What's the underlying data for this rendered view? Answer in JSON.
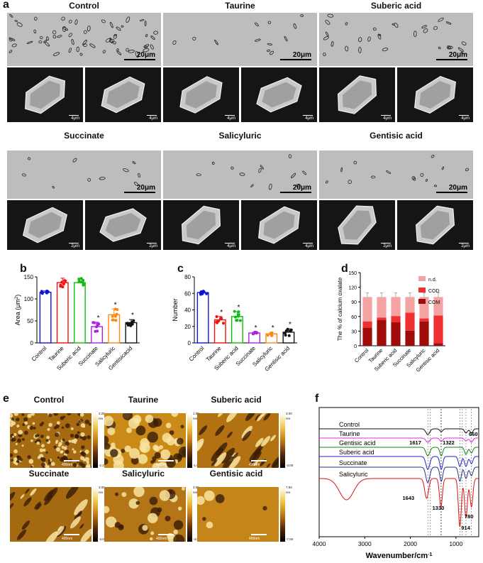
{
  "panel_a": {
    "letter": "a",
    "samples": [
      {
        "title": "Control",
        "opt_scale": "20μm",
        "sem_scales": [
          "4μm",
          "4μm"
        ]
      },
      {
        "title": "Taurine",
        "opt_scale": "20μm",
        "sem_scales": [
          "4μm",
          "4μm"
        ]
      },
      {
        "title": "Suberic acid",
        "opt_scale": "20μm",
        "sem_scales": [
          "4μm",
          "4μm"
        ]
      },
      {
        "title": "Succinate",
        "opt_scale": "20μm",
        "sem_scales": [
          "2μm",
          "2μm"
        ]
      },
      {
        "title": "Salicyluric",
        "opt_scale": "20μm",
        "sem_scales": [
          "4μm",
          "4μm"
        ]
      },
      {
        "title": "Gentisic acid",
        "opt_scale": "20μm",
        "sem_scales": [
          "2μm",
          "2μm"
        ]
      }
    ]
  },
  "panel_b": {
    "letter": "b"
  },
  "panel_c": {
    "letter": "c"
  },
  "panel_d": {
    "letter": "d"
  },
  "panel_e": {
    "letter": "e",
    "samples": [
      {
        "title": "Control",
        "scale": "400nm",
        "cbar_top": "2.25",
        "cbar_bottom": "-2.25",
        "cbar_unit": "nm"
      },
      {
        "title": "Taurine",
        "scale": "400nm",
        "cbar_top": "1.00",
        "cbar_bottom": "-1.00",
        "cbar_unit": "nm"
      },
      {
        "title": "Suberic acid",
        "scale": "400nm",
        "cbar_top": "3.00",
        "cbar_bottom": "-3.00",
        "cbar_unit": "nm"
      },
      {
        "title": "Succinate",
        "scale": "400nm",
        "cbar_top": "3.00",
        "cbar_bottom": "-3.00",
        "cbar_unit": "nm"
      },
      {
        "title": "Salicyluric",
        "scale": "400nm",
        "cbar_top": "3.00",
        "cbar_bottom": "-3.00",
        "cbar_unit": "nm"
      },
      {
        "title": "Gentisic acid",
        "scale": "400nm",
        "cbar_top": "7.50",
        "cbar_bottom": "-7.50",
        "cbar_unit": "nm"
      }
    ]
  },
  "panel_f": {
    "letter": "f"
  },
  "chart_data": [
    {
      "id": "b",
      "type": "bar",
      "ylabel": "Area (μm²)",
      "ylabel_main": "Area (μm",
      "ylabel_sup": "2",
      "ylabel_end": ")",
      "ylim": [
        0,
        150
      ],
      "yticks": [
        "0",
        "50",
        "100",
        "150"
      ],
      "categories": [
        "Control",
        "Taurine",
        "Suberic acid",
        "Succinate",
        "Salicyluric",
        "Gentisicacid"
      ],
      "values": [
        115,
        137,
        137,
        37,
        64,
        46
      ],
      "errors": [
        3,
        10,
        10,
        10,
        13,
        7
      ],
      "colors": [
        "#1111dd",
        "#ee1111",
        "#11bb11",
        "#aa22dd",
        "#ff8811",
        "#111111"
      ],
      "significance": [
        "",
        "",
        "",
        "*",
        "*",
        "*"
      ]
    },
    {
      "id": "c",
      "type": "bar",
      "ylabel": "Number",
      "ylim": [
        0,
        80
      ],
      "yticks": [
        "0",
        "20",
        "40",
        "60",
        "80"
      ],
      "categories": [
        "Control",
        "Taurine",
        "Suberic acid",
        "Succinate",
        "Salicyluric",
        "Gentisic acid"
      ],
      "values": [
        61,
        28,
        32,
        12,
        11,
        13
      ],
      "errors": [
        2,
        4,
        6,
        1,
        2,
        4
      ],
      "colors": [
        "#1111dd",
        "#ee1111",
        "#11bb11",
        "#aa22dd",
        "#ff8811",
        "#111111"
      ],
      "significance": [
        "",
        "*",
        "*",
        "*",
        "*",
        "*"
      ]
    },
    {
      "id": "d",
      "type": "bar",
      "stacked": true,
      "ylabel": "The % of calcium oxalate",
      "ylim": [
        0,
        150
      ],
      "yticks": [
        "0",
        "30",
        "60",
        "90",
        "120",
        "150"
      ],
      "categories": [
        "Control",
        "Taurine",
        "Suberic acid",
        "Succinate",
        "Salicyluric",
        "Gentisic acid"
      ],
      "series": [
        {
          "name": "COM",
          "color": "#9e0b0b",
          "values": [
            37,
            53,
            48,
            31,
            50,
            5
          ]
        },
        {
          "name": "COD",
          "color": "#f03030",
          "values": [
            13,
            5,
            13,
            37,
            6,
            57
          ]
        },
        {
          "name": "n.d.",
          "color": "#f4a3a3",
          "values": [
            50,
            42,
            39,
            32,
            44,
            38
          ]
        }
      ],
      "legend_position": "top-right"
    },
    {
      "id": "f",
      "type": "line",
      "xlabel_main": "Wavenumber/cm",
      "xlabel_sup": "-1",
      "xlim": [
        4000,
        500
      ],
      "xticks": [
        "4000",
        "3000",
        "2000",
        "1000"
      ],
      "series": [
        {
          "name": "Control",
          "color": "#111111"
        },
        {
          "name": "Taurine",
          "color": "#ee22ee"
        },
        {
          "name": "Gentisic acid",
          "color": "#118811"
        },
        {
          "name": "Suberic acid",
          "color": "#2222cc"
        },
        {
          "name": "Succinate",
          "color": "#223388"
        },
        {
          "name": "Salicyluric",
          "color": "#dd1111"
        }
      ],
      "annotations": [
        "1617",
        "1322",
        "660",
        "1643",
        "1330",
        "780",
        "914"
      ]
    }
  ]
}
